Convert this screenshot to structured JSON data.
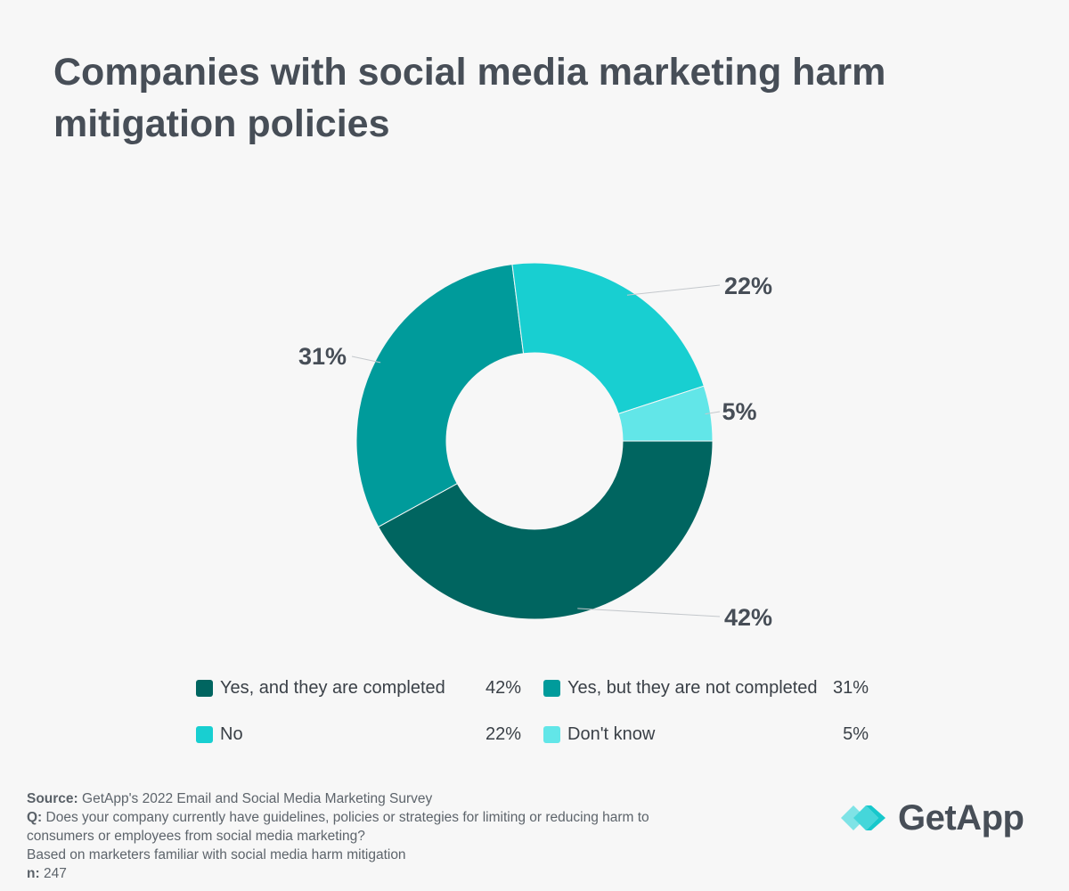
{
  "title": "Companies with social media marketing harm mitigation policies",
  "chart_data": {
    "type": "pie",
    "variant": "donut",
    "series": [
      {
        "label": "Yes, and they are completed",
        "value": 42,
        "display": "42%",
        "color": "#006560"
      },
      {
        "label": "Yes, but they are not completed",
        "value": 31,
        "display": "31%",
        "color": "#009b9b"
      },
      {
        "label": "No",
        "value": 22,
        "display": "22%",
        "color": "#18cfd1"
      },
      {
        "label": "Don't know",
        "value": 5,
        "display": "5%",
        "color": "#62e6e8"
      }
    ],
    "legend_placement": "bottom"
  },
  "footnotes": {
    "source_label": "Source:",
    "source_text": "GetApp's 2022 Email and Social Media Marketing Survey",
    "q_label": "Q:",
    "q_text": "Does your company currently have guidelines, policies or strategies for limiting or reducing harm to",
    "q_text_2": "consumers or employees from social media marketing?",
    "base_text": "Based on marketers familiar with social media harm mitigation",
    "n_label": "n:",
    "n_text": "247"
  },
  "logo": {
    "text": "GetApp",
    "icon": "getapp-chevrons-icon",
    "icon_colors": [
      "#7fe3e6",
      "#17c8cc"
    ]
  }
}
